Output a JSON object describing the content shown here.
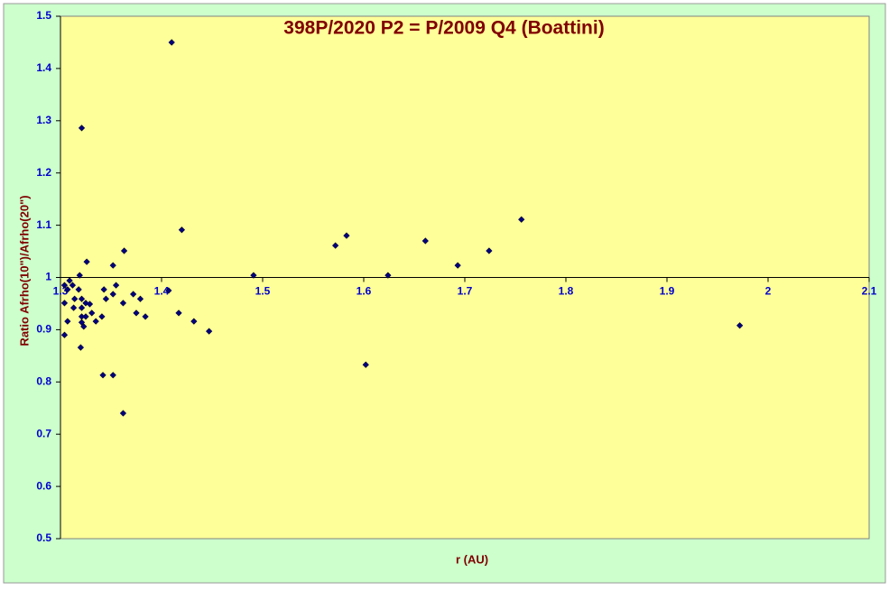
{
  "chart_data": {
    "type": "scatter",
    "title": "398P/2020 P2 = P/2009 Q4 (Boattini)",
    "x_label": "r (AU)",
    "y_label": "Ratio Afrho(10\")/Afrho(20\")",
    "xlim": [
      1.3,
      2.1
    ],
    "xticks": [
      1.3,
      1.4,
      1.5,
      1.6,
      1.7,
      1.8,
      1.9,
      2,
      2.1
    ],
    "ylim": [
      0.5,
      1.5
    ],
    "yticks": [
      0.5,
      0.6,
      0.7,
      0.8,
      0.9,
      1,
      1.1,
      1.2,
      1.3,
      1.4,
      1.5
    ],
    "x_axis_crosses_at": 1,
    "color": "#000080",
    "x": [
      1.41,
      1.321,
      1.756,
      1.42,
      1.583,
      1.661,
      1.572,
      1.724,
      1.363,
      1.326,
      1.693,
      1.352,
      1.319,
      1.491,
      1.624,
      1.309,
      1.304,
      1.312,
      1.307,
      1.355,
      1.318,
      1.343,
      1.407,
      1.372,
      1.352,
      1.314,
      1.321,
      1.345,
      1.379,
      1.304,
      1.325,
      1.329,
      1.362,
      1.313,
      1.321,
      1.331,
      1.375,
      1.417,
      1.321,
      1.325,
      1.341,
      1.384,
      1.307,
      1.335,
      1.432,
      1.321,
      1.323,
      1.972,
      1.447,
      1.304,
      1.32,
      1.602,
      1.342,
      1.352,
      1.362
    ],
    "values": [
      1.45,
      1.286,
      1.111,
      1.091,
      1.08,
      1.07,
      1.061,
      1.051,
      1.051,
      1.03,
      1.023,
      1.023,
      1.004,
      1.004,
      1.004,
      0.994,
      0.985,
      0.985,
      0.977,
      0.985,
      0.977,
      0.977,
      0.975,
      0.968,
      0.968,
      0.959,
      0.959,
      0.959,
      0.959,
      0.951,
      0.951,
      0.949,
      0.951,
      0.942,
      0.942,
      0.932,
      0.932,
      0.932,
      0.925,
      0.925,
      0.925,
      0.925,
      0.916,
      0.916,
      0.916,
      0.914,
      0.906,
      0.908,
      0.897,
      0.89,
      0.866,
      0.833,
      0.813,
      0.813,
      0.74
    ]
  }
}
